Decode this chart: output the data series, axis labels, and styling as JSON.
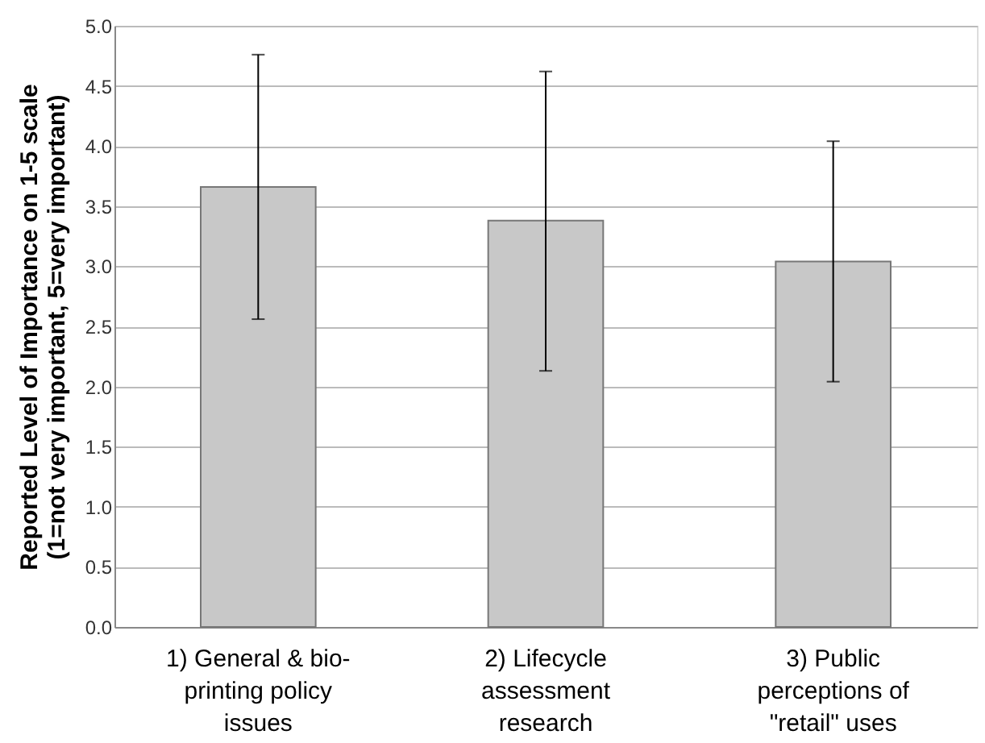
{
  "chart_data": {
    "type": "bar",
    "ylabel": "Reported Level of Importance on 1-5 scale (1=not very important, 5=very important)",
    "categories": [
      "1) General & bio-printing policy issues",
      "2) Lifecycle assessment research",
      "3) Public perceptions of \"retail\" uses"
    ],
    "values": [
      3.66,
      3.38,
      3.04
    ],
    "errors": [
      [
        2.56,
        4.76
      ],
      [
        2.13,
        4.62
      ],
      [
        2.04,
        4.04
      ]
    ],
    "color": "#c8c8c8",
    "ylim": [
      0,
      5
    ],
    "yticks": [
      {
        "value": 0,
        "label": "0.0"
      },
      {
        "value": 0.5,
        "label": "0.5"
      },
      {
        "value": 1,
        "label": "1.0"
      },
      {
        "value": 1.5,
        "label": "1.5"
      },
      {
        "value": 2,
        "label": "2.0"
      },
      {
        "value": 2.5,
        "label": "2.5"
      },
      {
        "value": 3,
        "label": "3.0"
      },
      {
        "value": 3.5,
        "label": "3.5"
      },
      {
        "value": 4,
        "label": "4.0"
      },
      {
        "value": 4.5,
        "label": "4.5"
      },
      {
        "value": 5,
        "label": "5.0"
      }
    ],
    "grid": "y"
  }
}
